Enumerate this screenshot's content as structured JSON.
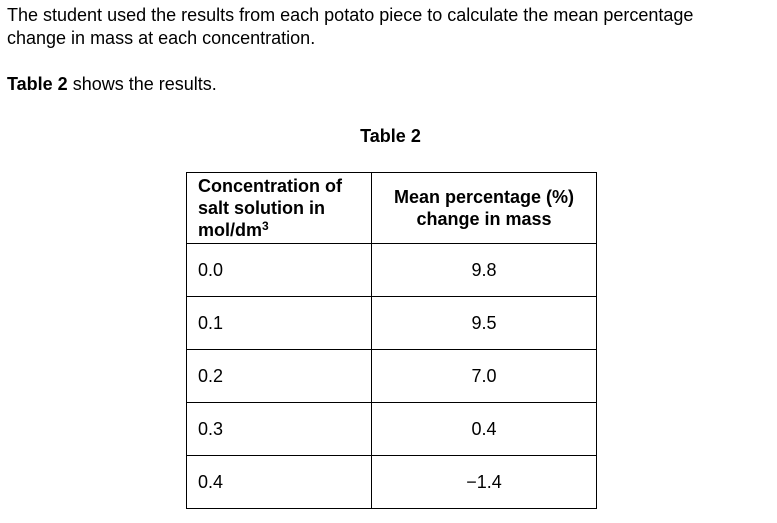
{
  "intro": {
    "line1": "The student used the results from each potato piece to calculate the mean percentage",
    "line2": "change in mass at each concentration."
  },
  "table_ref": {
    "bold": "Table 2",
    "rest": " shows the results."
  },
  "table": {
    "caption": "Table 2",
    "headers": {
      "concentration_lines": [
        "Concentration of",
        "salt solution in"
      ],
      "concentration_unit": "mol/dm",
      "concentration_unit_sup": "3",
      "mean_line1": "Mean percentage (%)",
      "mean_line2": "change in mass"
    },
    "rows": [
      {
        "concentration": "0.0",
        "mean_change": "9.8"
      },
      {
        "concentration": "0.1",
        "mean_change": "9.5"
      },
      {
        "concentration": "0.2",
        "mean_change": "7.0"
      },
      {
        "concentration": "0.3",
        "mean_change": "0.4"
      },
      {
        "concentration": "0.4",
        "mean_change": "−1.4"
      }
    ]
  }
}
